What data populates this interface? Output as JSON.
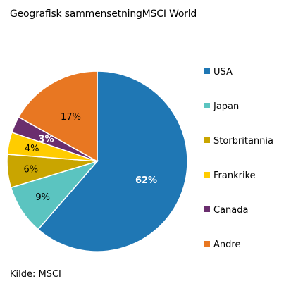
{
  "title": "Geografisk sammensetningMSCI World",
  "source": "Kilde: MSCI",
  "chart_data": {
    "type": "pie",
    "title": "Geografisk sammensetningMSCI World",
    "start_angle_deg": 0,
    "direction": "clockwise",
    "legend_position": "right",
    "slices": [
      {
        "label": "USA",
        "value": 62,
        "text": "62%",
        "color": "#1F77B4",
        "label_color": "#ffffff"
      },
      {
        "label": "Japan",
        "value": 9,
        "text": "9%",
        "color": "#5BC4C0",
        "label_color": "#000000"
      },
      {
        "label": "Storbritannia",
        "value": 6,
        "text": "6%",
        "color": "#C9A500",
        "label_color": "#000000"
      },
      {
        "label": "Frankrike",
        "value": 4,
        "text": "4%",
        "color": "#FFCC00",
        "label_color": "#000000"
      },
      {
        "label": "Canada",
        "value": 3,
        "text": "3%",
        "color": "#6A2E6E",
        "label_color": "#ffffff"
      },
      {
        "label": "Andre",
        "value": 17,
        "text": "17%",
        "color": "#E87722",
        "label_color": "#000000"
      }
    ]
  }
}
